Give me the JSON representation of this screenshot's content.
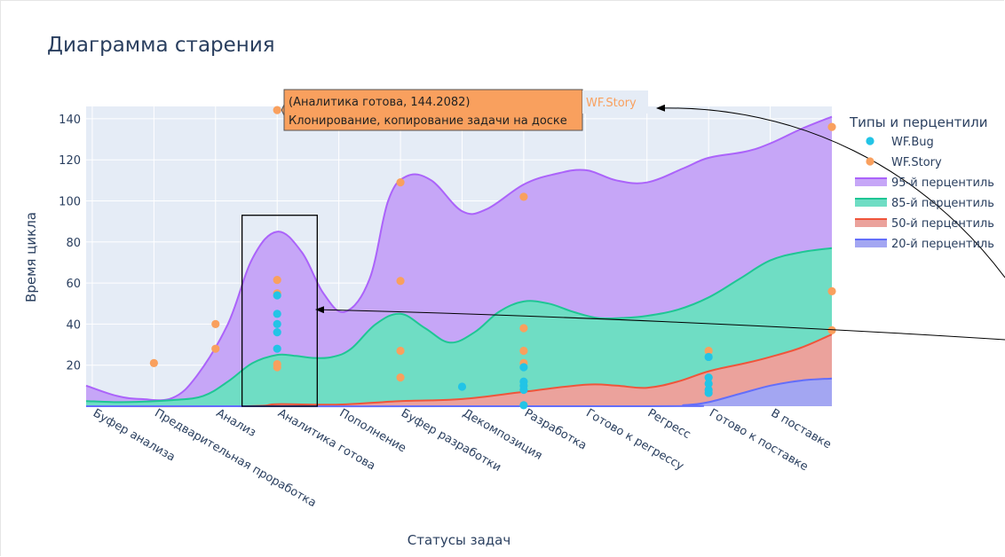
{
  "chart_data": {
    "type": "area",
    "title": "Диаграмма старения",
    "xlabel": "Статусы задач",
    "ylabel": "Время цикла",
    "ylim": [
      0,
      146
    ],
    "yticks": [
      20,
      40,
      60,
      80,
      100,
      120,
      140
    ],
    "categories": [
      "Буфер анализа",
      "Предварительная проработка",
      "Анализ",
      "Аналитика готова",
      "Пополнение",
      "Буфер разработки",
      "Декомпозиция",
      "Разработка",
      "Готово к регрессу",
      "Регресс",
      "Готово к поставке",
      "В поставке"
    ],
    "legend": {
      "title": "Типы и перцентили",
      "placement": "right",
      "items": [
        {
          "label": "WF.Bug",
          "kind": "marker",
          "color": "#22c4e6"
        },
        {
          "label": "WF.Story",
          "kind": "marker",
          "color": "#f9a05e"
        },
        {
          "label": "95-й перцентиль",
          "kind": "area",
          "line": "#ab63fa",
          "fill": "#c6a6f7"
        },
        {
          "label": "85-й перцентиль",
          "kind": "area",
          "line": "#1fc694",
          "fill": "#6fddc4"
        },
        {
          "label": "50-й перцентиль",
          "kind": "area",
          "line": "#ef553b",
          "fill": "#eba29c"
        },
        {
          "label": "20-й перцентиль",
          "kind": "area",
          "line": "#636efa",
          "fill": "#a3a6f2"
        }
      ]
    },
    "x_extent": [
      -0.1,
      12.0
    ],
    "series": [
      {
        "name": "95-й перцентиль",
        "color": "#ab63fa",
        "fill": "#c6a6f7",
        "x": [
          -0.1,
          0.4,
          0.8,
          1.3,
          1.7,
          2.2,
          2.6,
          3.0,
          3.4,
          3.75,
          4.1,
          4.5,
          4.8,
          5.1,
          5.5,
          6.0,
          6.4,
          7.0,
          7.5,
          8.0,
          8.5,
          9.0,
          9.6,
          10.0,
          10.6,
          11.0,
          11.5,
          12.0
        ],
        "values": [
          10,
          5,
          3.5,
          4,
          15,
          40,
          72,
          85,
          75,
          55,
          46,
          62,
          100,
          112,
          110,
          95,
          96,
          108,
          113,
          115,
          110,
          109,
          116,
          121,
          124,
          128,
          135,
          141
        ]
      },
      {
        "name": "85-й перцентиль",
        "color": "#1fc694",
        "fill": "#6fddc4",
        "x": [
          -0.1,
          0.5,
          1.3,
          1.8,
          2.2,
          2.6,
          3.0,
          3.3,
          3.6,
          3.9,
          4.2,
          4.6,
          5.0,
          5.4,
          5.8,
          6.2,
          6.6,
          7.0,
          7.4,
          7.8,
          8.2,
          8.6,
          9.0,
          9.5,
          10.0,
          10.5,
          11.0,
          11.5,
          12.0
        ],
        "values": [
          2.5,
          2,
          3,
          5,
          12,
          21,
          25,
          24.5,
          23.5,
          24,
          28,
          40,
          45,
          38,
          31,
          36,
          46,
          51,
          50,
          46,
          43,
          43,
          44,
          47,
          53,
          62,
          71,
          75,
          77
        ]
      },
      {
        "name": "50-й перцентиль",
        "color": "#ef553b",
        "fill": "#eba29c",
        "x": [
          -0.1,
          2.5,
          3.0,
          4.0,
          5.0,
          6.0,
          7.0,
          8.0,
          8.5,
          9.0,
          9.5,
          10.0,
          10.6,
          11.0,
          11.5,
          12.0
        ],
        "values": [
          0,
          0,
          1,
          0.8,
          2.5,
          3.5,
          7,
          10.5,
          10,
          9,
          12,
          17,
          21,
          24,
          28.5,
          35
        ]
      },
      {
        "name": "20-й перцентиль",
        "color": "#636efa",
        "fill": "#a3a6f2",
        "x": [
          -0.1,
          9.0,
          9.6,
          10.0,
          10.5,
          11.0,
          11.5,
          12.0
        ],
        "values": [
          0,
          0,
          0.5,
          2,
          6,
          10,
          12.5,
          13.5
        ]
      }
    ],
    "points": [
      {
        "series": "WF.Story",
        "x": 1,
        "y": 21
      },
      {
        "series": "WF.Story",
        "x": 2,
        "y": 40
      },
      {
        "series": "WF.Story",
        "x": 2,
        "y": 28
      },
      {
        "series": "WF.Story",
        "x": 3,
        "y": 144.2082
      },
      {
        "series": "WF.Story",
        "x": 3,
        "y": 61.5
      },
      {
        "series": "WF.Story",
        "x": 3,
        "y": 55
      },
      {
        "series": "WF.Story",
        "x": 3,
        "y": 20.5
      },
      {
        "series": "WF.Story",
        "x": 3,
        "y": 19
      },
      {
        "series": "WF.Story",
        "x": 5,
        "y": 109
      },
      {
        "series": "WF.Story",
        "x": 5,
        "y": 61
      },
      {
        "series": "WF.Story",
        "x": 5,
        "y": 27
      },
      {
        "series": "WF.Story",
        "x": 5,
        "y": 14
      },
      {
        "series": "WF.Story",
        "x": 7,
        "y": 102
      },
      {
        "series": "WF.Story",
        "x": 7,
        "y": 38
      },
      {
        "series": "WF.Story",
        "x": 7,
        "y": 27
      },
      {
        "series": "WF.Story",
        "x": 7,
        "y": 21
      },
      {
        "series": "WF.Story",
        "x": 10,
        "y": 27
      },
      {
        "series": "WF.Story",
        "x": 12,
        "y": 136
      },
      {
        "series": "WF.Story",
        "x": 12,
        "y": 56
      },
      {
        "series": "WF.Story",
        "x": 12,
        "y": 37
      },
      {
        "series": "WF.Bug",
        "x": 3,
        "y": 54
      },
      {
        "series": "WF.Bug",
        "x": 3,
        "y": 45
      },
      {
        "series": "WF.Bug",
        "x": 3,
        "y": 40
      },
      {
        "series": "WF.Bug",
        "x": 3,
        "y": 36
      },
      {
        "series": "WF.Bug",
        "x": 3,
        "y": 28
      },
      {
        "series": "WF.Bug",
        "x": 6,
        "y": 9.5
      },
      {
        "series": "WF.Bug",
        "x": 7,
        "y": 19
      },
      {
        "series": "WF.Bug",
        "x": 7,
        "y": 12
      },
      {
        "series": "WF.Bug",
        "x": 7,
        "y": 10
      },
      {
        "series": "WF.Bug",
        "x": 7,
        "y": 8
      },
      {
        "series": "WF.Bug",
        "x": 7,
        "y": 0.5
      },
      {
        "series": "WF.Bug",
        "x": 10,
        "y": 24
      },
      {
        "series": "WF.Bug",
        "x": 10,
        "y": 14
      },
      {
        "series": "WF.Bug",
        "x": 10,
        "y": 11
      },
      {
        "series": "WF.Bug",
        "x": 10,
        "y": 8
      },
      {
        "series": "WF.Bug",
        "x": 10,
        "y": 6.5
      }
    ],
    "hover": {
      "line1": "(Аналитика готова, 144.2082)",
      "line2": "Клонирование, копирование задачи на доске",
      "series_tag": "WF.Story",
      "x": 3,
      "y": 144.2082
    },
    "highlight_box": {
      "x": [
        2.43,
        3.65
      ],
      "y": [
        0,
        93
      ]
    }
  }
}
